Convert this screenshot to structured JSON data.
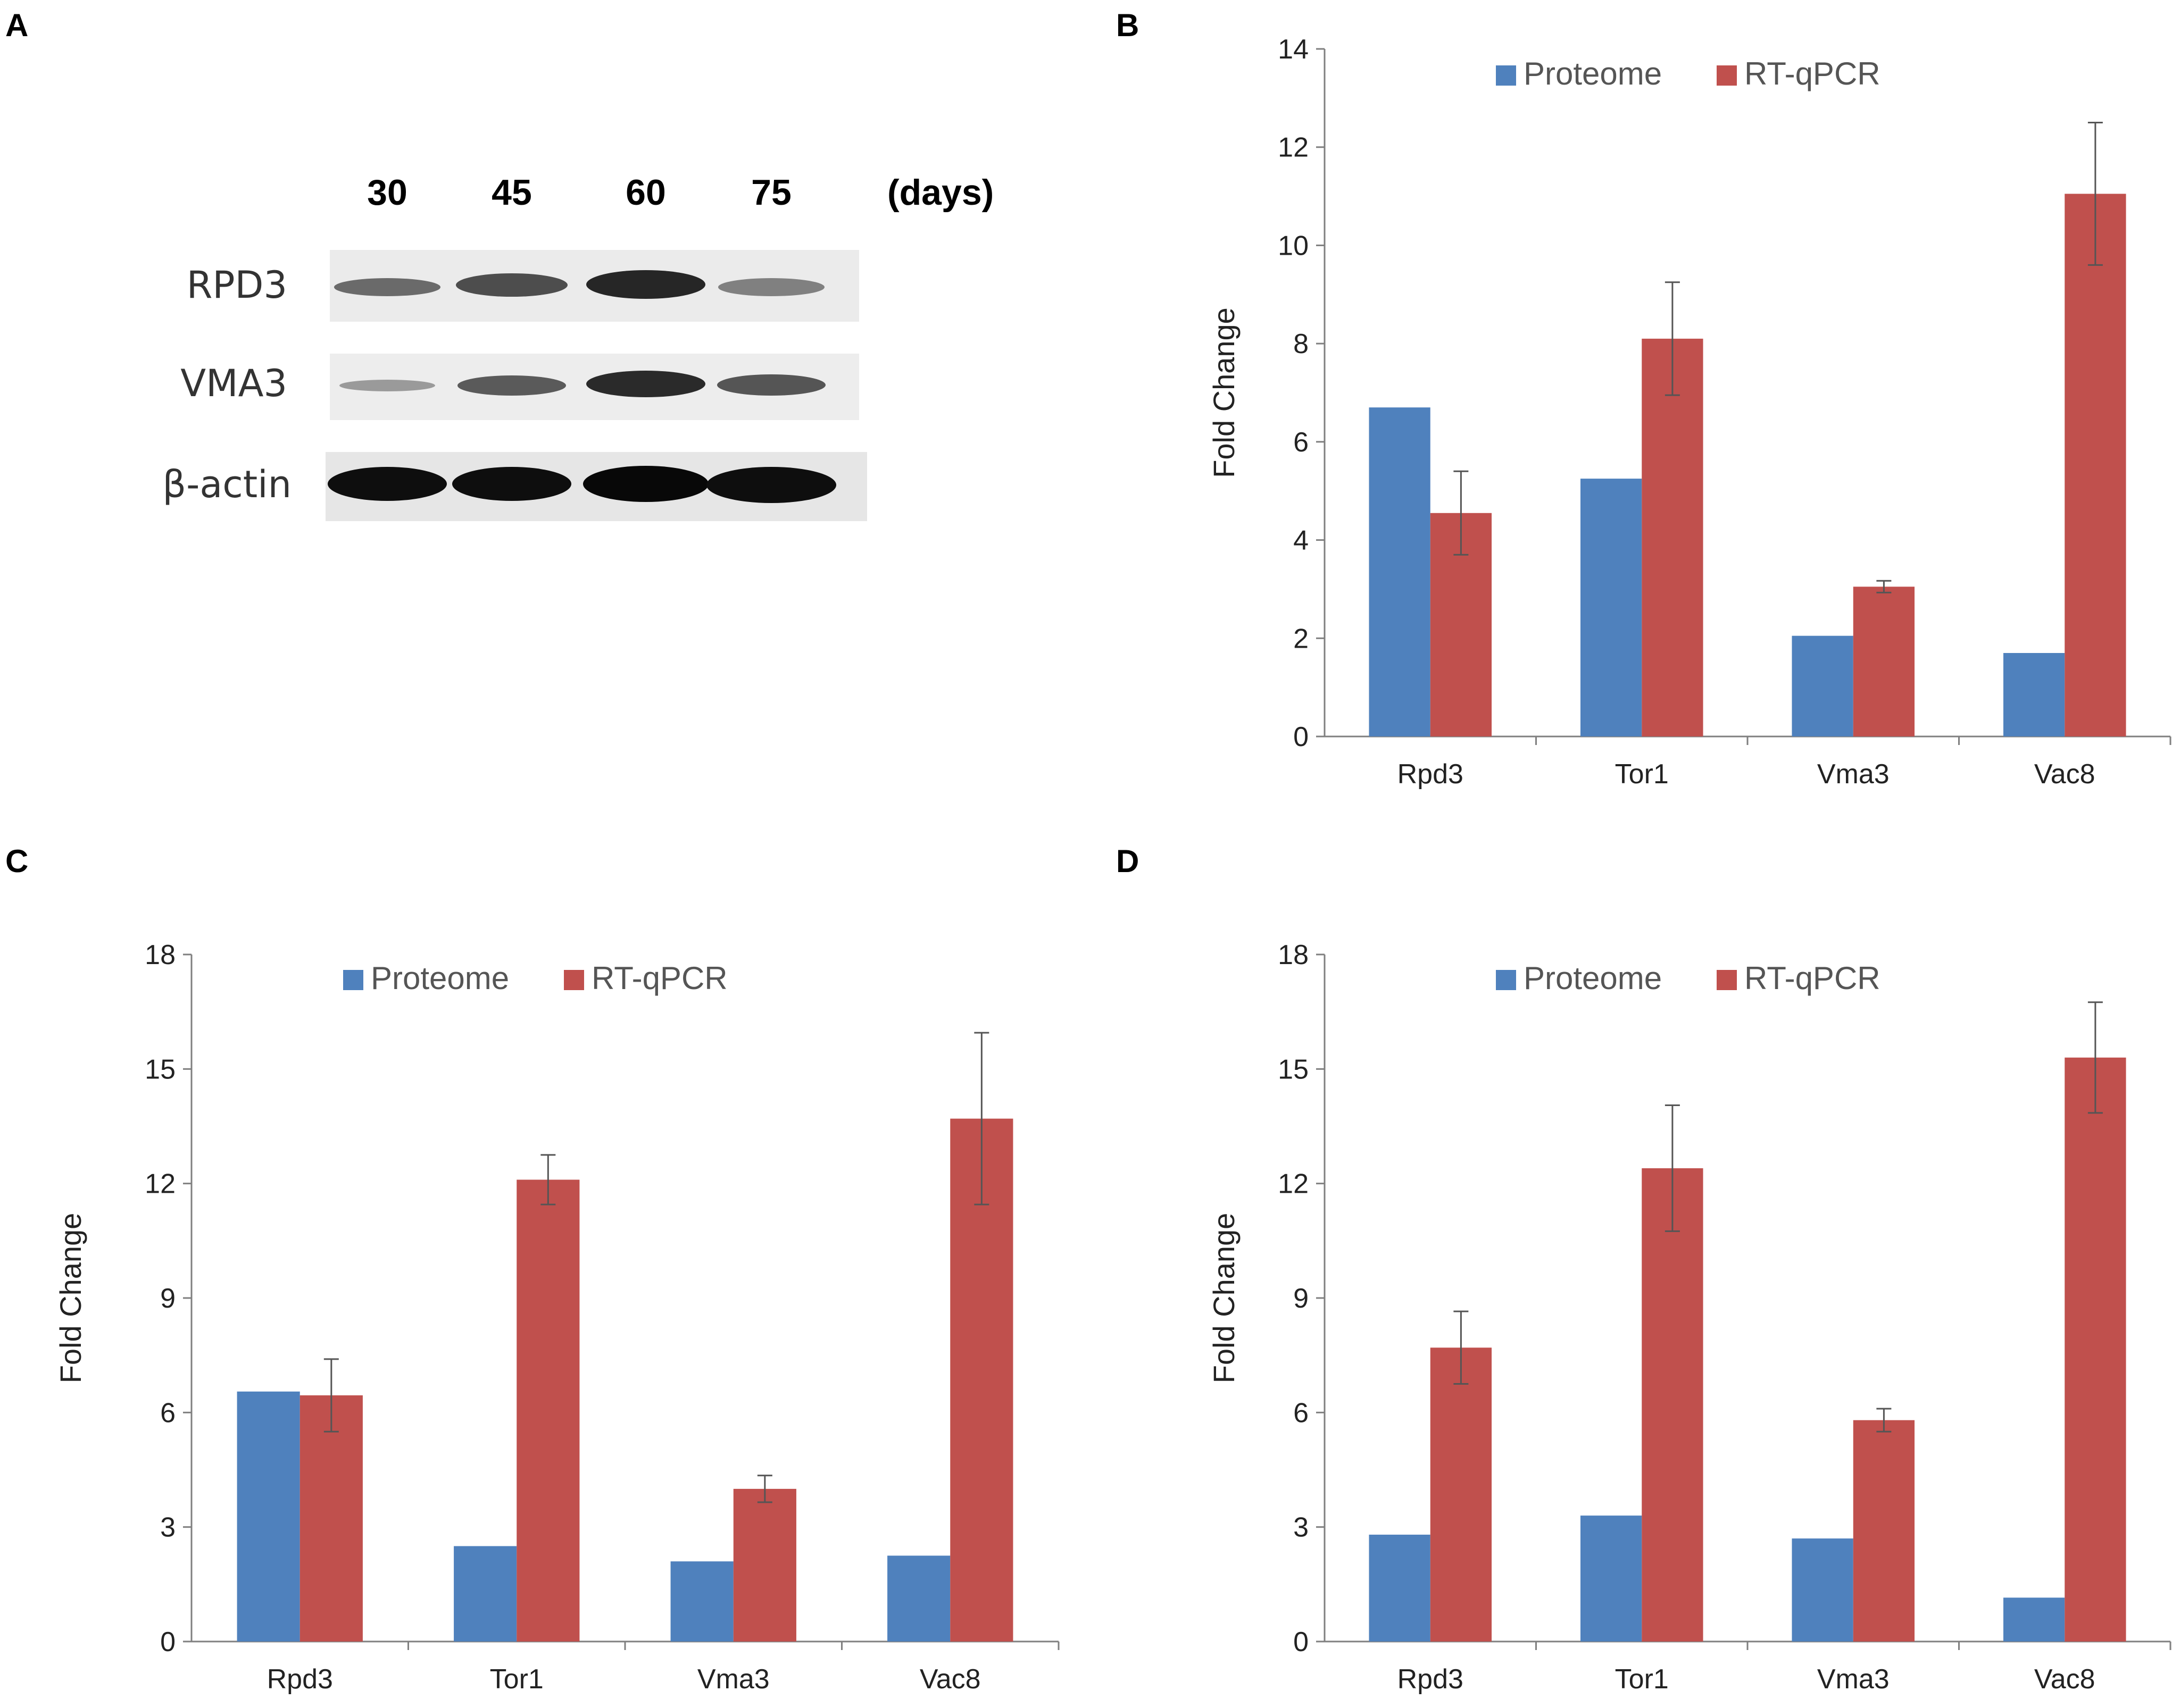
{
  "panels": {
    "a": "A",
    "b": "B",
    "c": "C",
    "d": "D"
  },
  "western_blot": {
    "lanes": [
      "30",
      "45",
      "60",
      "75"
    ],
    "unit": "(days)",
    "rows": [
      "RPD3",
      "VMA3",
      "β-actin"
    ]
  },
  "colors": {
    "proteome": "#4f81bd",
    "rtqpcr": "#c0504d"
  },
  "chart_data": [
    {
      "panel": "B",
      "type": "bar",
      "title": "",
      "xlabel": "",
      "ylabel": "Fold Change",
      "ylim": [
        0,
        14
      ],
      "yticks": [
        0,
        2,
        4,
        6,
        8,
        10,
        12,
        14
      ],
      "categories": [
        "Rpd3",
        "Tor1",
        "Vma3",
        "Vac8"
      ],
      "legend_position": "top",
      "series": [
        {
          "name": "Proteome",
          "values": [
            6.7,
            5.25,
            2.05,
            1.7
          ]
        },
        {
          "name": "RT-qPCR",
          "values": [
            4.55,
            8.1,
            3.05,
            11.05
          ],
          "errors": [
            0.85,
            1.15,
            0.12,
            1.45
          ]
        }
      ]
    },
    {
      "panel": "C",
      "type": "bar",
      "title": "",
      "xlabel": "",
      "ylabel": "Fold Change",
      "ylim": [
        0,
        18
      ],
      "yticks": [
        0,
        3,
        6,
        9,
        12,
        15,
        18
      ],
      "categories": [
        "Rpd3",
        "Tor1",
        "Vma3",
        "Vac8"
      ],
      "legend_position": "top",
      "series": [
        {
          "name": "Proteome",
          "values": [
            6.55,
            2.5,
            2.1,
            2.25
          ]
        },
        {
          "name": "RT-qPCR",
          "values": [
            6.45,
            12.1,
            4.0,
            13.7
          ],
          "errors": [
            0.95,
            0.65,
            0.35,
            2.25
          ]
        }
      ]
    },
    {
      "panel": "D",
      "type": "bar",
      "title": "",
      "xlabel": "",
      "ylabel": "Fold Change",
      "ylim": [
        0,
        18
      ],
      "yticks": [
        0,
        3,
        6,
        9,
        12,
        15,
        18
      ],
      "categories": [
        "Rpd3",
        "Tor1",
        "Vma3",
        "Vac8"
      ],
      "legend_position": "top",
      "series": [
        {
          "name": "Proteome",
          "values": [
            2.8,
            3.3,
            2.7,
            1.15
          ]
        },
        {
          "name": "RT-qPCR",
          "values": [
            7.7,
            12.4,
            5.8,
            15.3
          ],
          "errors": [
            0.95,
            1.65,
            0.3,
            1.45
          ]
        }
      ]
    }
  ]
}
